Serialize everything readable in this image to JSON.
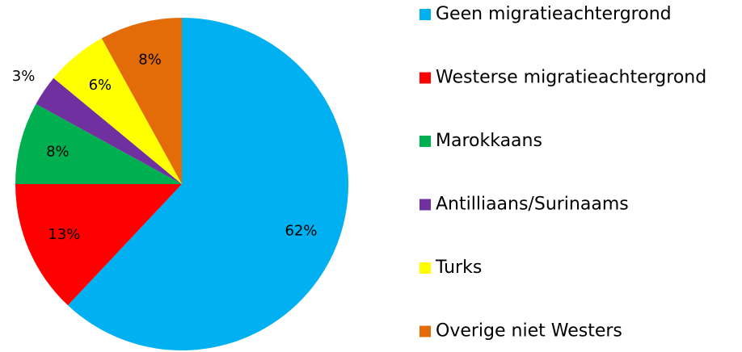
{
  "chart_data": {
    "type": "pie",
    "categories": [
      "Geen migratieachtergrond",
      "Westerse migratieachtergrond",
      "Marokkaans",
      "Antilliaans/Surinaams",
      "Turks",
      "Overige niet Westers"
    ],
    "values": [
      62,
      13,
      8,
      3,
      6,
      8
    ],
    "value_labels": [
      "62%",
      "13%",
      "8%",
      "3%",
      "6%",
      "8%"
    ],
    "colors": [
      "#00b0f0",
      "#ff0000",
      "#00b050",
      "#7030a0",
      "#ffff00",
      "#e36c09"
    ],
    "legend": "right"
  }
}
